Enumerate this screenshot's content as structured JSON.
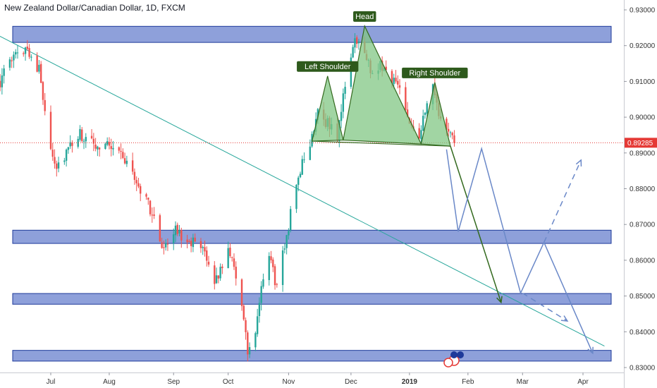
{
  "title": "New Zealand Dollar/Canadian Dollar, 1D, FXCM",
  "chart_data": {
    "type": "candlestick",
    "title": "New Zealand Dollar/Canadian Dollar, 1D, FXCM",
    "symbol": "NZDCAD",
    "interval": "1D",
    "source": "FXCM",
    "y_axis": {
      "position": "right",
      "ylim": [
        0.8285,
        0.933
      ],
      "ticks": [
        "0.93000",
        "0.92000",
        "0.91000",
        "0.90000",
        "0.89000",
        "0.88000",
        "0.87000",
        "0.86000",
        "0.85000",
        "0.84000",
        "0.83000"
      ]
    },
    "x_axis": {
      "labels": [
        "Jul",
        "Aug",
        "Sep",
        "Oct",
        "Nov",
        "Dec",
        "2019",
        "Feb",
        "Mar",
        "Apr"
      ],
      "label_dates": [
        "2018-07-02",
        "2018-08-01",
        "2018-09-03",
        "2018-10-01",
        "2018-11-01",
        "2018-12-03",
        "2019-01-02",
        "2019-02-01",
        "2019-03-01",
        "2019-04-01"
      ]
    },
    "current_price": {
      "label": "0.89285",
      "value": 0.89285,
      "color": "#e53935"
    },
    "candles_anchor_path": [
      [
        "2018-06-06",
        0.91
      ],
      [
        "2018-06-12",
        0.916
      ],
      [
        "2018-06-20",
        0.92
      ],
      [
        "2018-06-22",
        0.917
      ],
      [
        "2018-06-26",
        0.913
      ],
      [
        "2018-07-02",
        0.892
      ],
      [
        "2018-07-05",
        0.886
      ],
      [
        "2018-07-10",
        0.89
      ],
      [
        "2018-07-17",
        0.895
      ],
      [
        "2018-07-24",
        0.892
      ],
      [
        "2018-07-31",
        0.893
      ],
      [
        "2018-08-07",
        0.89
      ],
      [
        "2018-08-14",
        0.883
      ],
      [
        "2018-08-21",
        0.876
      ],
      [
        "2018-08-28",
        0.864
      ],
      [
        "2018-09-04",
        0.868
      ],
      [
        "2018-09-11",
        0.866
      ],
      [
        "2018-09-18",
        0.862
      ],
      [
        "2018-09-25",
        0.854
      ],
      [
        "2018-10-01",
        0.864
      ],
      [
        "2018-10-04",
        0.859
      ],
      [
        "2018-10-08",
        0.847
      ],
      [
        "2018-10-11",
        0.834
      ],
      [
        "2018-10-15",
        0.84
      ],
      [
        "2018-10-18",
        0.851
      ],
      [
        "2018-10-22",
        0.862
      ],
      [
        "2018-10-26",
        0.852
      ],
      [
        "2018-11-01",
        0.87
      ],
      [
        "2018-11-06",
        0.884
      ],
      [
        "2018-11-12",
        0.892
      ],
      [
        "2018-11-16",
        0.903
      ],
      [
        "2018-11-20",
        0.899
      ],
      [
        "2018-11-26",
        0.895
      ],
      [
        "2018-11-29",
        0.905
      ],
      [
        "2018-12-03",
        0.918
      ],
      [
        "2018-12-06",
        0.922
      ],
      [
        "2018-12-11",
        0.916
      ],
      [
        "2018-12-14",
        0.912
      ],
      [
        "2018-12-18",
        0.915
      ],
      [
        "2018-12-24",
        0.911
      ],
      [
        "2018-12-28",
        0.908
      ],
      [
        "2019-01-03",
        0.898
      ],
      [
        "2019-01-07",
        0.895
      ],
      [
        "2019-01-10",
        0.901
      ],
      [
        "2019-01-14",
        0.908
      ],
      [
        "2019-01-17",
        0.901
      ],
      [
        "2019-01-22",
        0.895
      ],
      [
        "2019-01-25",
        0.8929
      ]
    ],
    "zones": [
      {
        "name": "resistance-top",
        "y_from": 0.9209,
        "y_to": 0.9254
      },
      {
        "name": "zone-087",
        "y_from": 0.8647,
        "y_to": 0.8684
      },
      {
        "name": "zone-085",
        "y_from": 0.8477,
        "y_to": 0.8507
      },
      {
        "name": "zone-083",
        "y_from": 0.8318,
        "y_to": 0.8348
      }
    ],
    "trendline": {
      "from": [
        "2018-06-01",
        0.924
      ],
      "to": [
        "2019-04-12",
        0.836
      ],
      "color": "#26a69a"
    },
    "pattern": {
      "name": "Head and Shoulders",
      "color": "#81c784",
      "points": [
        [
          "2018-11-13",
          0.8933
        ],
        [
          "2018-11-21",
          0.9115
        ],
        [
          "2018-11-29",
          0.8936
        ],
        [
          "2018-12-10",
          0.9255
        ],
        [
          "2019-01-08",
          0.8925
        ],
        [
          "2019-01-15",
          0.9097
        ],
        [
          "2019-01-23",
          0.8919
        ]
      ],
      "labels": [
        {
          "text": "Left Shoulder",
          "at": [
            "2018-11-21",
            0.9115
          ]
        },
        {
          "text": "Head",
          "at": [
            "2018-12-10",
            0.9255
          ]
        },
        {
          "text": "Right Shoulder",
          "at": [
            "2019-01-15",
            0.9097
          ]
        }
      ]
    },
    "projections": [
      {
        "name": "target-line",
        "style": "solid",
        "color": "#33691e",
        "points": [
          [
            "2019-01-23",
            0.8919
          ],
          [
            "2019-02-18",
            0.8482
          ]
        ]
      },
      {
        "name": "bounce-path",
        "style": "solid",
        "color": "#6a88c8",
        "points": [
          [
            "2019-01-21",
            0.891
          ],
          [
            "2019-01-27",
            0.868
          ],
          [
            "2019-02-08",
            0.8912
          ],
          [
            "2019-02-28",
            0.8508
          ],
          [
            "2019-03-12",
            0.865
          ],
          [
            "2019-04-06",
            0.834
          ]
        ]
      },
      {
        "name": "alt-path",
        "style": "dashed",
        "color": "#6a88c8",
        "points": [
          [
            "2019-03-01",
            0.8508
          ],
          [
            "2019-03-24",
            0.843
          ]
        ]
      },
      {
        "name": "alt-path-up",
        "style": "dashed",
        "color": "#6a88c8",
        "points": [
          [
            "2019-03-12",
            0.865
          ],
          [
            "2019-03-31",
            0.888
          ]
        ]
      }
    ]
  }
}
